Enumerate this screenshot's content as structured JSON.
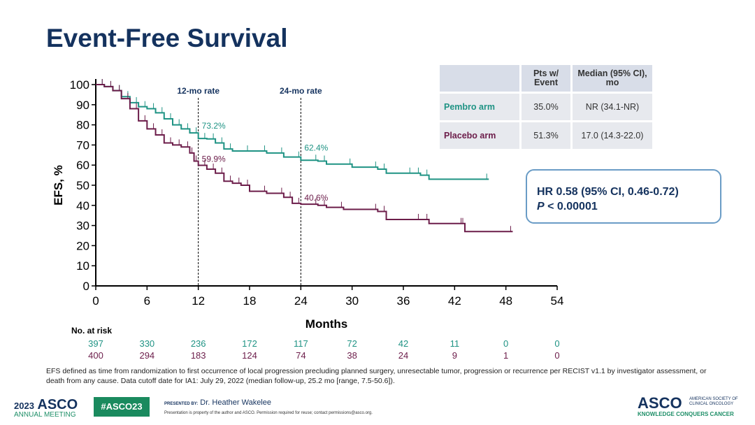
{
  "title": "Event-Free Survival",
  "colors": {
    "pembro": "#1f9384",
    "placebo": "#6c1d4a",
    "title": "#14325e"
  },
  "table": {
    "headers": [
      "",
      "Pts w/ Event",
      "Median (95% CI), mo"
    ],
    "rows": [
      {
        "arm": "Pembro arm",
        "pts": "35.0%",
        "median": "NR (34.1-NR)"
      },
      {
        "arm": "Placebo arm",
        "pts": "51.3%",
        "median": "17.0 (14.3-22.0)"
      }
    ]
  },
  "hr": {
    "line1": "HR 0.58 (95% CI, 0.46-0.72)",
    "p_label": "P",
    "line2": " < 0.00001"
  },
  "chart_data": {
    "type": "line",
    "title": "",
    "xlabel": "Months",
    "ylabel": "EFS, %",
    "xlim": [
      0,
      54
    ],
    "ylim": [
      0,
      100
    ],
    "xticks": [
      0,
      6,
      12,
      18,
      24,
      30,
      36,
      42,
      48,
      54
    ],
    "yticks": [
      0,
      10,
      20,
      30,
      40,
      50,
      60,
      70,
      80,
      90,
      100
    ],
    "reference_lines": [
      {
        "x": 12,
        "label": "12-mo rate"
      },
      {
        "x": 24,
        "label": "24-mo rate"
      }
    ],
    "series": [
      {
        "name": "Pembro arm",
        "annotations": [
          {
            "x": 12,
            "label": "73.2%"
          },
          {
            "x": 24,
            "label": "62.4%"
          }
        ],
        "x": [
          0,
          1,
          2,
          3,
          4,
          5,
          6,
          7,
          8,
          9,
          10,
          11,
          12,
          13,
          14,
          15,
          16,
          18,
          20,
          22,
          24,
          26,
          27,
          30,
          33,
          34,
          37,
          38,
          39,
          46
        ],
        "y": [
          100,
          99,
          97,
          94,
          91,
          89,
          88,
          86,
          83,
          80,
          78,
          76,
          73.2,
          73,
          71,
          68,
          67,
          67,
          66,
          64,
          62.4,
          62,
          60.5,
          59,
          58,
          56,
          56,
          55,
          53,
          53
        ]
      },
      {
        "name": "Placebo arm",
        "annotations": [
          {
            "x": 12,
            "label": "59.9%"
          },
          {
            "x": 24,
            "label": "40.6%"
          }
        ],
        "x": [
          0,
          1,
          2,
          3,
          4,
          5,
          6,
          7,
          8,
          9,
          10,
          11,
          11.5,
          12,
          13,
          14,
          15,
          16,
          17,
          18,
          20,
          22,
          23,
          24,
          26,
          27,
          29,
          33,
          34,
          38,
          39,
          43,
          43.2,
          48.8
        ],
        "y": [
          100,
          99,
          97,
          93,
          88,
          82,
          78,
          75,
          71,
          70,
          69,
          66,
          62,
          59.9,
          58,
          56,
          52,
          51,
          50,
          47,
          46,
          44,
          41,
          40.6,
          40,
          39,
          38,
          37,
          33,
          33,
          31,
          31,
          27,
          27
        ]
      }
    ],
    "at_risk": {
      "label": "No. at risk",
      "times": [
        0,
        6,
        12,
        18,
        24,
        30,
        36,
        42,
        48,
        54
      ],
      "pembro": [
        "397",
        "330",
        "236",
        "172",
        "117",
        "72",
        "42",
        "11",
        "0",
        "0"
      ],
      "placebo": [
        "400",
        "294",
        "183",
        "124",
        "74",
        "38",
        "24",
        "9",
        "1",
        "0"
      ]
    }
  },
  "footnote": "EFS defined as time from randomization to first occurrence of local progression precluding planned surgery, unresectable tumor, progression or recurrence per RECIST v1.1 by investigator assessment, or death from any cause. Data cutoff date for IA1: July 29, 2022 (median follow-up, 25.2 mo [range, 7.5-50.6]).",
  "footer": {
    "year": "2023",
    "asco": "ASCO",
    "meeting": "ANNUAL MEETING",
    "hashtag": "#ASCO23",
    "presented_by": "PRESENTED BY:",
    "presenter": "Dr. Heather Wakelee",
    "notice": "Presentation is property of the author and ASCO. Permission required for reuse; contact permissions@asco.org.",
    "logo": "ASCO",
    "society": "AMERICAN SOCIETY OF CLINICAL ONCOLOGY",
    "tagline": "KNOWLEDGE CONQUERS CANCER"
  }
}
